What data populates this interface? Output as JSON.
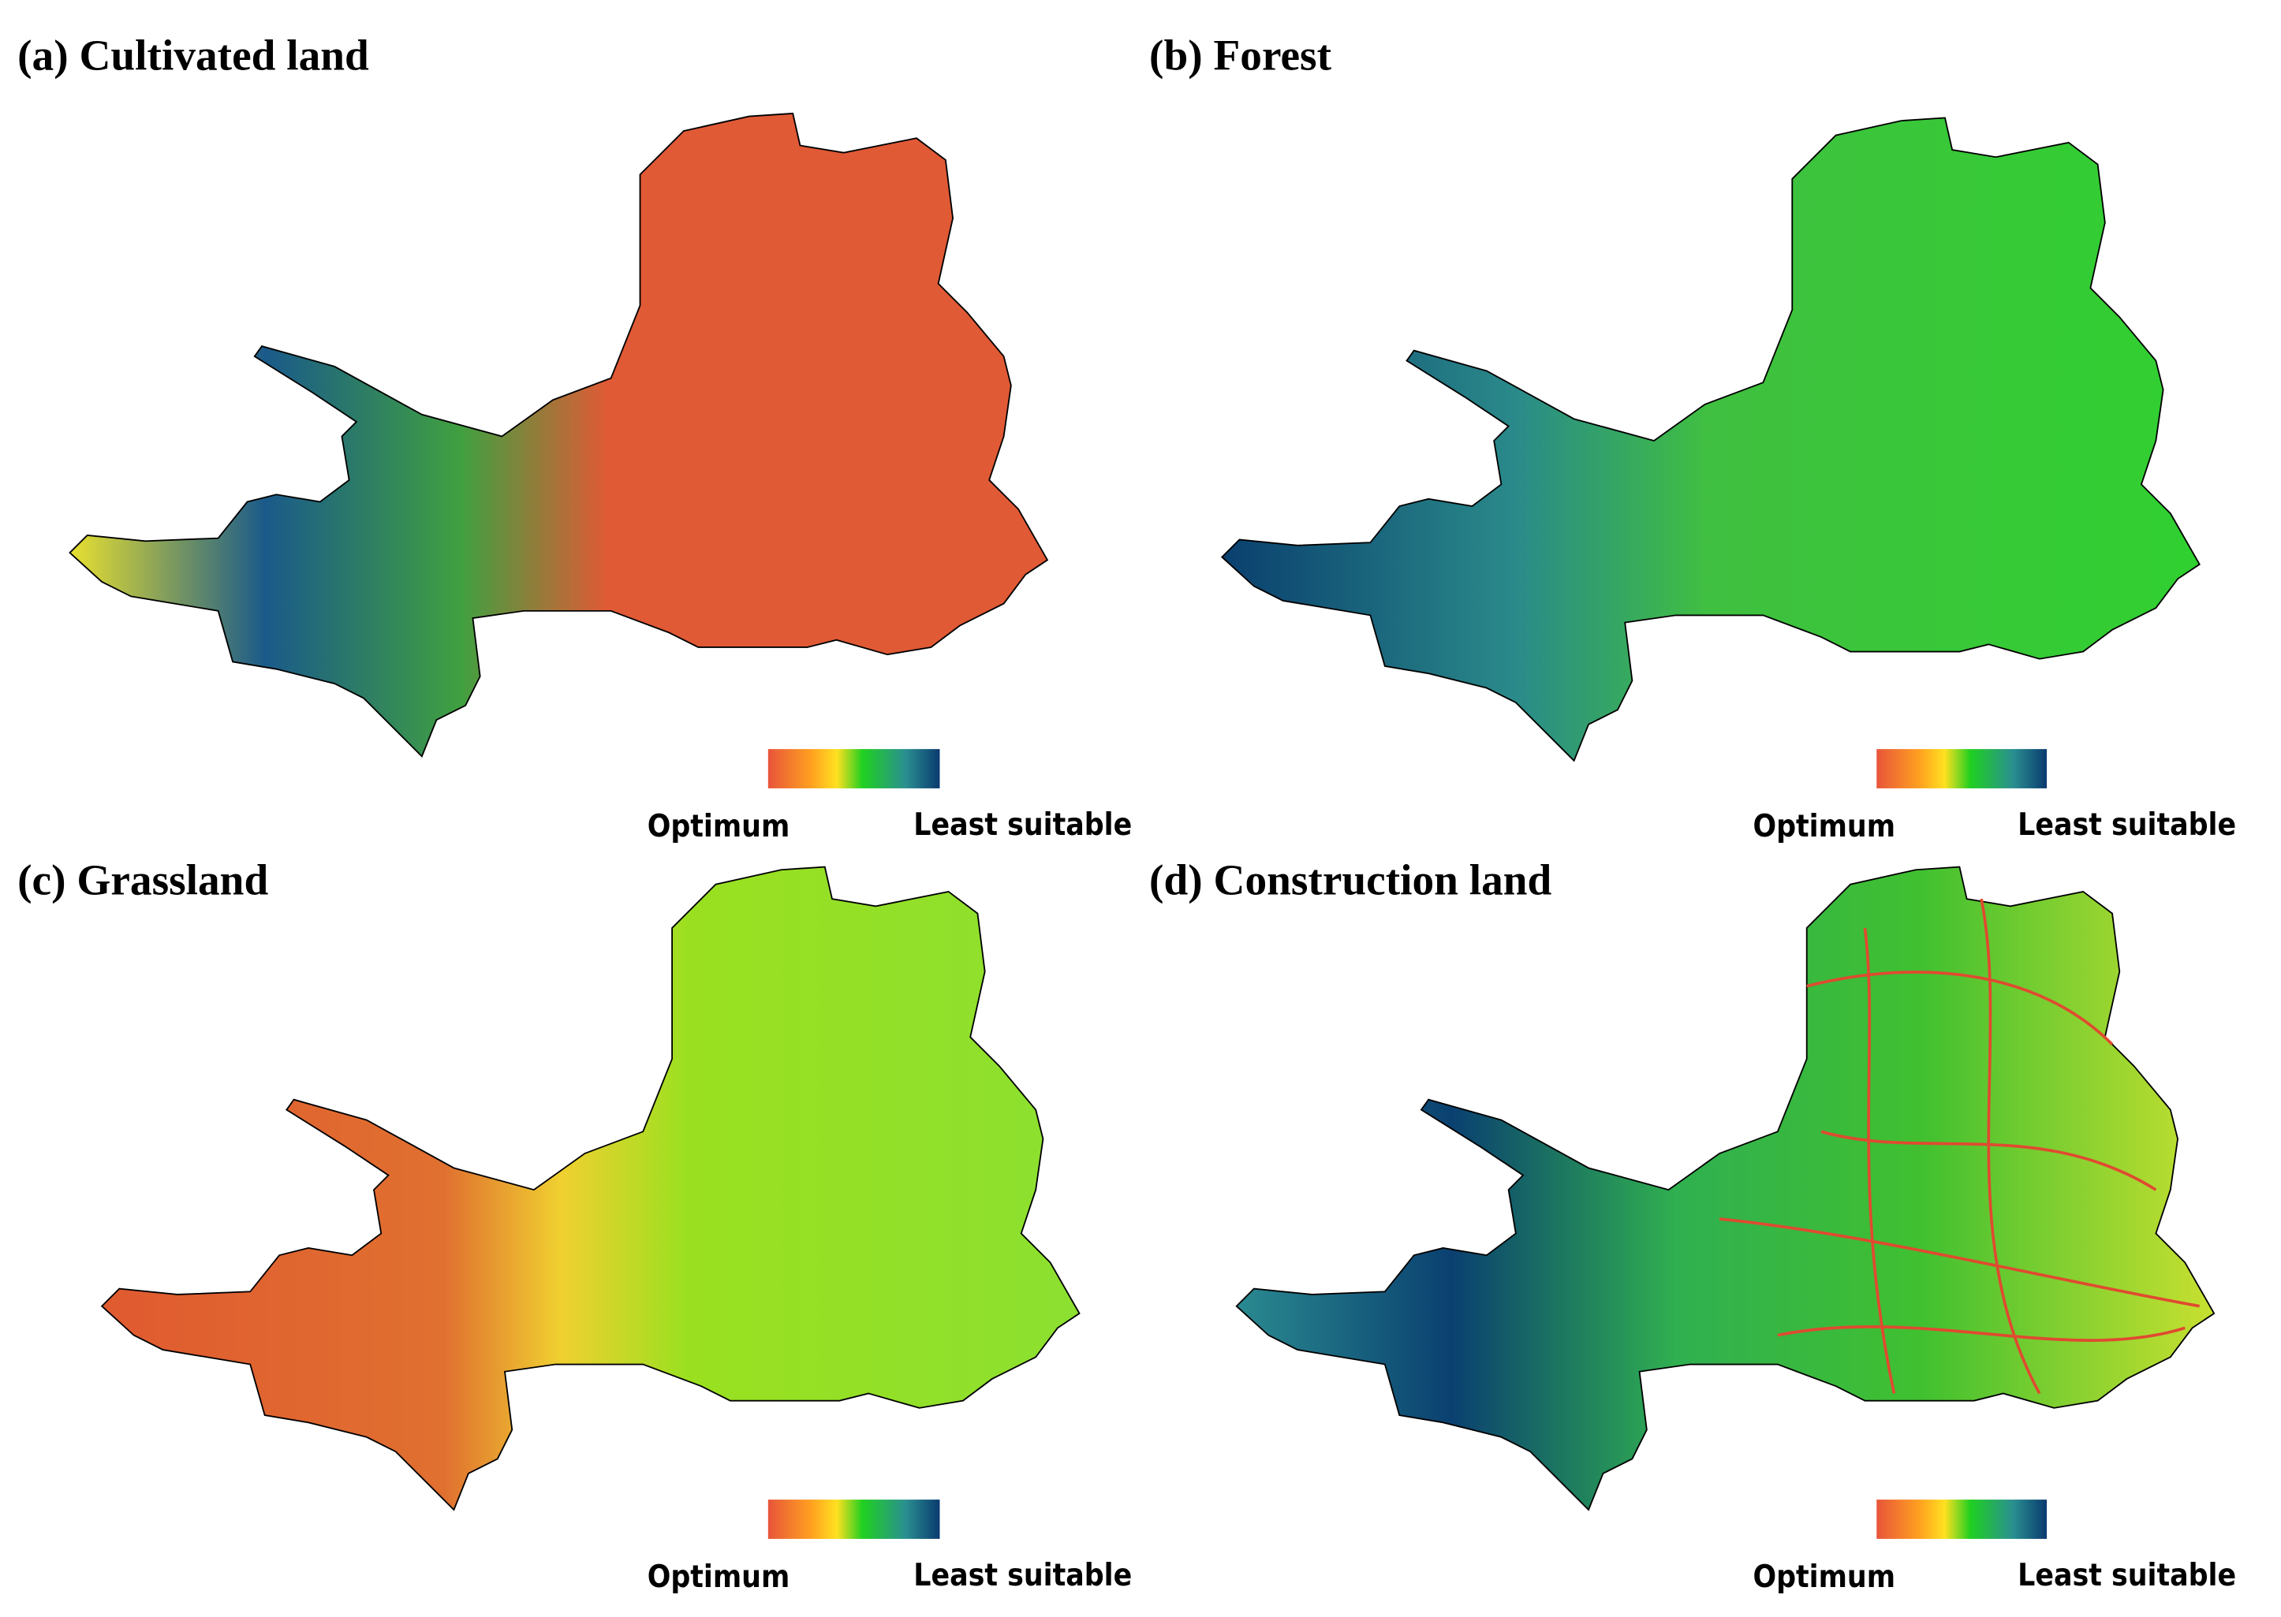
{
  "panels": [
    {
      "title": "(a) Cultivated land",
      "legend": {
        "low": "Optimum",
        "high": "Least suitable"
      }
    },
    {
      "title": "(b) Forest",
      "legend": {
        "low": "Optimum",
        "high": "Least suitable"
      }
    },
    {
      "title": "(c) Grassland",
      "legend": {
        "low": "Optimum",
        "high": "Least suitable"
      }
    },
    {
      "title": "(d) Construction land",
      "legend": {
        "low": "Optimum",
        "high": "Least suitable"
      }
    }
  ]
}
